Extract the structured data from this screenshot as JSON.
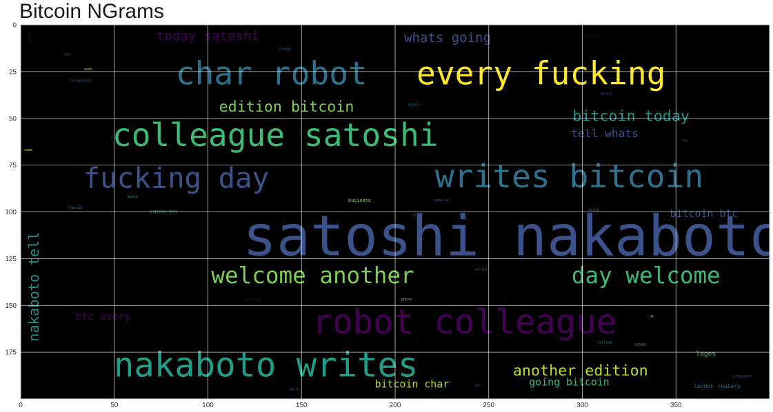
{
  "chart_data": {
    "type": "wordcloud",
    "title": "Bitcoin NGrams",
    "xlabel": "",
    "ylabel": "",
    "xlim": [
      0,
      400
    ],
    "ylim": [
      200,
      0
    ],
    "x_ticks": [
      0,
      50,
      100,
      150,
      200,
      250,
      300,
      350
    ],
    "y_ticks": [
      0,
      25,
      50,
      75,
      100,
      125,
      150,
      175
    ],
    "grid": true,
    "background": "#000000",
    "words": [
      {
        "text": "satoshi nakaboto",
        "x": 263,
        "y": 113,
        "size": 30,
        "color": "#3b528b",
        "rotate": 0
      },
      {
        "text": "char robot",
        "x": 134,
        "y": 26,
        "size": 17,
        "color": "#2c728e",
        "rotate": 0
      },
      {
        "text": "every fucking",
        "x": 278,
        "y": 26,
        "size": 17,
        "color": "#fde725",
        "rotate": 0
      },
      {
        "text": "colleague satoshi",
        "x": 136,
        "y": 59,
        "size": 17,
        "color": "#3bbb75",
        "rotate": 0
      },
      {
        "text": "writes bitcoin",
        "x": 293,
        "y": 81,
        "size": 17,
        "color": "#2c728e",
        "rotate": 0
      },
      {
        "text": "fucking day",
        "x": 83,
        "y": 82,
        "size": 15,
        "color": "#3b528b",
        "rotate": 0
      },
      {
        "text": "robot colleague",
        "x": 237,
        "y": 159,
        "size": 18,
        "color": "#440154",
        "rotate": 0
      },
      {
        "text": "nakaboto writes",
        "x": 131,
        "y": 182,
        "size": 18,
        "color": "#1f9e89",
        "rotate": 0
      },
      {
        "text": "welcome another",
        "x": 156,
        "y": 134,
        "size": 12,
        "color": "#7ad151",
        "rotate": 0
      },
      {
        "text": "day welcome",
        "x": 334,
        "y": 134,
        "size": 12,
        "color": "#3bbb75",
        "rotate": 0
      },
      {
        "text": "edition bitcoin",
        "x": 142,
        "y": 44,
        "size": 8,
        "color": "#7ad151",
        "rotate": 0
      },
      {
        "text": "today satoshi",
        "x": 100,
        "y": 6,
        "size": 7,
        "color": "#440154",
        "rotate": 0
      },
      {
        "text": "whats going",
        "x": 228,
        "y": 7,
        "size": 7,
        "color": "#3b528b",
        "rotate": 0
      },
      {
        "text": "bitcoin today",
        "x": 326,
        "y": 49,
        "size": 8,
        "color": "#21918c",
        "rotate": 0
      },
      {
        "text": "tell whats",
        "x": 312,
        "y": 58,
        "size": 6,
        "color": "#3b528b",
        "rotate": 0
      },
      {
        "text": "bitcoin btc",
        "x": 365,
        "y": 101,
        "size": 5.5,
        "color": "#3b528b",
        "rotate": 0
      },
      {
        "text": "nakaboto tell",
        "x": 7,
        "y": 140,
        "size": 7.5,
        "color": "#21918c",
        "rotate": -90
      },
      {
        "text": "btc every",
        "x": 44,
        "y": 156,
        "size": 5.5,
        "color": "#440154",
        "rotate": 0
      },
      {
        "text": "another edition",
        "x": 299,
        "y": 185,
        "size": 8,
        "color": "#bddf26",
        "rotate": 0
      },
      {
        "text": "going bitcoin",
        "x": 293,
        "y": 191,
        "size": 5.5,
        "color": "#3bbb75",
        "rotate": 0
      },
      {
        "text": "bitcoin char",
        "x": 209,
        "y": 192,
        "size": 5.5,
        "color": "#bddf26",
        "rotate": 0
      },
      {
        "text": "lagos",
        "x": 366,
        "y": 176,
        "size": 3.5,
        "color": "#3bbb75",
        "rotate": 0
      },
      {
        "text": "london reuters",
        "x": 372,
        "y": 193,
        "size": 3,
        "color": "#2c728e",
        "rotate": 0
      },
      {
        "text": "business",
        "x": 181,
        "y": 94,
        "size": 2.5,
        "color": "#7ad151",
        "rotate": 0
      },
      {
        "text": "singapore",
        "x": 385,
        "y": 188,
        "size": 2,
        "color": "#3b528b",
        "rotate": 0
      },
      {
        "text": "uk",
        "x": 337,
        "y": 156,
        "size": 1.8,
        "color": "#bddf26",
        "rotate": 0
      },
      {
        "text": "selling",
        "x": 312,
        "y": 170,
        "size": 1.8,
        "color": "#21918c",
        "rotate": 0
      },
      {
        "text": "scenes",
        "x": 331,
        "y": 171,
        "size": 1.8,
        "color": "#3bbb75",
        "rotate": 0
      },
      {
        "text": "supplier",
        "x": 225,
        "y": 94,
        "size": 1.8,
        "color": "#3b528b",
        "rotate": 0
      },
      {
        "text": "cryptocurrency",
        "x": 76,
        "y": 100,
        "size": 1.8,
        "color": "#3bbb75",
        "rotate": 0
      },
      {
        "text": "started",
        "x": 29,
        "y": 98,
        "size": 1.8,
        "color": "#2c728e",
        "rotate": 0
      },
      {
        "text": "month",
        "x": 60,
        "y": 92,
        "size": 1.8,
        "color": "#21918c",
        "rotate": 0
      },
      {
        "text": "fundamental",
        "x": 32,
        "y": 30,
        "size": 1.8,
        "color": "#3b528b",
        "rotate": 0
      },
      {
        "text": "made",
        "x": 36,
        "y": 24,
        "size": 1.8,
        "color": "#7ad151",
        "rotate": 0
      },
      {
        "text": "year",
        "x": 25,
        "y": 16,
        "size": 1.8,
        "color": "#3b528b",
        "rotate": 0
      },
      {
        "text": "change",
        "x": 141,
        "y": 13,
        "size": 1.8,
        "color": "#2c728e",
        "rotate": 0
      },
      {
        "text": "crypto",
        "x": 210,
        "y": 43,
        "size": 1.8,
        "color": "#2c728e",
        "rotate": 0
      },
      {
        "text": "market",
        "x": 313,
        "y": 37,
        "size": 1.8,
        "color": "#3b528b",
        "rotate": 0
      },
      {
        "text": "abolaji",
        "x": 305,
        "y": 6,
        "size": 1.8,
        "color": "#440154",
        "rotate": 0
      },
      {
        "text": "same",
        "x": 4,
        "y": 67,
        "size": 1.8,
        "color": "#bddf26",
        "rotate": 0
      },
      {
        "text": "how",
        "x": 355,
        "y": 62,
        "size": 1.8,
        "color": "#3b528b",
        "rotate": 0
      },
      {
        "text": "going",
        "x": 306,
        "y": 99,
        "size": 1.8,
        "color": "#2c728e",
        "rotate": 0
      },
      {
        "text": "brain",
        "x": 212,
        "y": 102,
        "size": 1.8,
        "color": "#3b528b",
        "rotate": 0
      },
      {
        "text": "africa",
        "x": 246,
        "y": 131,
        "size": 1.8,
        "color": "#2c728e",
        "rotate": 0
      },
      {
        "text": "bustling",
        "x": 124,
        "y": 147,
        "size": 1.8,
        "color": "#440154",
        "rotate": 0
      },
      {
        "text": "phone",
        "x": 206,
        "y": 147,
        "size": 1.8,
        "color": "#7ad151",
        "rotate": 0
      },
      {
        "text": "abuja",
        "x": 146,
        "y": 195,
        "size": 1.8,
        "color": "#3b528b",
        "rotate": 0
      },
      {
        "text": "ago",
        "x": 244,
        "y": 193,
        "size": 1.8,
        "color": "#3b528b",
        "rotate": 0
      },
      {
        "text": "mobile",
        "x": 5,
        "y": 7,
        "size": 1.8,
        "color": "#440154",
        "rotate": -90
      }
    ]
  }
}
